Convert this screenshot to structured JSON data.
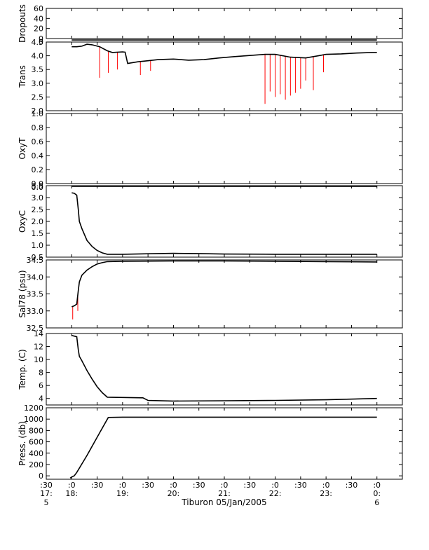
{
  "chart_data": {
    "type": "line",
    "xlabel": "Tiburon 05/Jan/2005",
    "x_ticks": [
      {
        "l1": ":30",
        "l2": "17:",
        "l3": "5"
      },
      {
        "l1": ":0",
        "l2": "18:",
        "l3": ""
      },
      {
        "l1": ":30",
        "l2": "",
        "l3": ""
      },
      {
        "l1": ":0",
        "l2": "19:",
        "l3": ""
      },
      {
        "l1": ":30",
        "l2": "",
        "l3": ""
      },
      {
        "l1": ":0",
        "l2": "20:",
        "l3": ""
      },
      {
        "l1": ":30",
        "l2": "",
        "l3": ""
      },
      {
        "l1": ":0",
        "l2": "21:",
        "l3": ""
      },
      {
        "l1": ":30",
        "l2": "",
        "l3": ""
      },
      {
        "l1": ":0",
        "l2": "22:",
        "l3": ""
      },
      {
        "l1": ":30",
        "l2": "",
        "l3": ""
      },
      {
        "l1": ":0",
        "l2": "23:",
        "l3": ""
      },
      {
        "l1": ":30",
        "l2": "",
        "l3": ""
      },
      {
        "l1": ":0",
        "l2": "0:",
        "l3": "6"
      }
    ],
    "xlim_hours": [
      17.5,
      24.5
    ],
    "colors": {
      "data": "#000000",
      "raw": "#ff0000",
      "axis": "#000000"
    },
    "panels": [
      {
        "ylabel": "Dropouts",
        "ylim": [
          0,
          60
        ],
        "ticks": [
          "0",
          "20",
          "40",
          "60"
        ],
        "tick_values": [
          0,
          20,
          40,
          60
        ],
        "extra_ticks": [
          {
            "label": "0",
            "value": -6
          }
        ],
        "series": [
          {
            "x": [
              18.0,
              24.0
            ],
            "y": [
              -3,
              -3
            ]
          }
        ]
      },
      {
        "ylabel": "Trans",
        "ylim": [
          2.0,
          4.5
        ],
        "ticks": [
          "2.0",
          "2.5",
          "3.0",
          "3.5",
          "4.0",
          "4.5"
        ],
        "tick_values": [
          2.0,
          2.5,
          3.0,
          3.5,
          4.0,
          4.5
        ],
        "series": [
          {
            "x": [
              18.0,
              18.1,
              18.2,
              18.3,
              18.4,
              18.55,
              18.7,
              18.8,
              19.0,
              19.05,
              19.1,
              19.3,
              19.5,
              19.7,
              20.0,
              20.3,
              20.6,
              20.9,
              21.2,
              21.5,
              21.8,
              22.0,
              22.3,
              22.6,
              22.85,
              23.0,
              23.3,
              23.6,
              23.9,
              24.0
            ],
            "y": [
              4.33,
              4.33,
              4.35,
              4.42,
              4.4,
              4.33,
              4.18,
              4.12,
              4.14,
              4.13,
              3.72,
              3.78,
              3.82,
              3.86,
              3.88,
              3.84,
              3.86,
              3.92,
              3.97,
              4.01,
              4.05,
              4.05,
              3.95,
              3.92,
              4.0,
              4.05,
              4.07,
              4.1,
              4.12,
              4.12
            ]
          }
        ],
        "raw_dips": [
          {
            "x": 18.55,
            "y": 3.2
          },
          {
            "x": 18.72,
            "y": 3.38
          },
          {
            "x": 18.9,
            "y": 3.5
          },
          {
            "x": 19.35,
            "y": 3.3
          },
          {
            "x": 19.55,
            "y": 3.45
          },
          {
            "x": 21.8,
            "y": 2.25
          },
          {
            "x": 21.9,
            "y": 2.7
          },
          {
            "x": 22.0,
            "y": 2.5
          },
          {
            "x": 22.1,
            "y": 2.6
          },
          {
            "x": 22.2,
            "y": 2.4
          },
          {
            "x": 22.3,
            "y": 2.55
          },
          {
            "x": 22.4,
            "y": 2.65
          },
          {
            "x": 22.5,
            "y": 2.8
          },
          {
            "x": 22.6,
            "y": 3.1
          },
          {
            "x": 22.75,
            "y": 2.75
          },
          {
            "x": 22.95,
            "y": 3.4
          }
        ]
      },
      {
        "ylabel": "OxyT",
        "ylim": [
          0.0,
          1.0
        ],
        "ticks": [
          "0.0",
          "0.2",
          "0.4",
          "0.6",
          "0.8",
          "1.0"
        ],
        "tick_values": [
          0.0,
          0.2,
          0.4,
          0.6,
          0.8,
          1.0
        ],
        "extra_ticks": [
          {
            "label": "0.0",
            "value": -0.05
          }
        ],
        "series": [
          {
            "x": [
              18.0,
              24.0
            ],
            "y": [
              -0.04,
              -0.04
            ]
          }
        ]
      },
      {
        "ylabel": "OxyC",
        "ylim": [
          0.5,
          3.5
        ],
        "ticks": [
          "0.5",
          "1.0",
          "1.5",
          "2.0",
          "2.5",
          "3.0",
          "3.5"
        ],
        "tick_values": [
          0.5,
          1.0,
          1.5,
          2.0,
          2.5,
          3.0,
          3.5
        ],
        "series": [
          {
            "x": [
              18.0,
              18.05,
              18.1,
              18.13,
              18.15,
              18.2,
              18.3,
              18.4,
              18.5,
              18.6,
              18.7,
              19.0,
              19.5,
              20.0,
              20.5,
              21.0,
              22.0,
              23.0,
              24.0
            ],
            "y": [
              3.2,
              3.18,
              3.1,
              2.5,
              2.0,
              1.7,
              1.2,
              0.95,
              0.78,
              0.68,
              0.62,
              0.62,
              0.64,
              0.66,
              0.65,
              0.63,
              0.62,
              0.62,
              0.62
            ]
          }
        ]
      },
      {
        "ylabel": "Sal78 (psu)",
        "ylim": [
          32.5,
          34.5
        ],
        "ticks": [
          "32.5",
          "33.0",
          "33.5",
          "34.0",
          "34.5"
        ],
        "tick_values": [
          32.5,
          33.0,
          33.5,
          34.0,
          34.5
        ],
        "series": [
          {
            "x": [
              18.0,
              18.05,
              18.1,
              18.13,
              18.15,
              18.2,
              18.3,
              18.4,
              18.5,
              18.6,
              18.7,
              19.0,
              20.0,
              21.0,
              22.0,
              23.0,
              24.0
            ],
            "y": [
              33.12,
              33.15,
              33.2,
              33.6,
              33.85,
              34.05,
              34.2,
              34.3,
              34.38,
              34.42,
              34.45,
              34.46,
              34.47,
              34.47,
              34.46,
              34.45,
              34.44
            ]
          }
        ],
        "raw_dips": [
          {
            "x": 18.02,
            "y": 32.75
          },
          {
            "x": 18.12,
            "y": 33.0
          }
        ]
      },
      {
        "ylabel": "Temp. (C)",
        "ylim": [
          3,
          14
        ],
        "ticks": [
          "4",
          "6",
          "8",
          "10",
          "12",
          "14"
        ],
        "tick_values": [
          4,
          6,
          8,
          10,
          12,
          14
        ],
        "series": [
          {
            "x": [
              18.0,
              18.05,
              18.1,
              18.13,
              18.15,
              18.2,
              18.3,
              18.4,
              18.5,
              18.6,
              18.7,
              19.0,
              19.4,
              19.5,
              20.0,
              21.0,
              22.0,
              23.0,
              24.0
            ],
            "y": [
              13.7,
              13.6,
              13.5,
              11.5,
              10.5,
              9.8,
              8.3,
              7.0,
              5.8,
              4.9,
              4.2,
              4.15,
              4.1,
              3.7,
              3.6,
              3.65,
              3.7,
              3.8,
              4.0
            ]
          }
        ]
      },
      {
        "ylabel": "Press. (db)",
        "ylim": [
          -60,
          1200
        ],
        "ticks": [
          "0",
          "200",
          "400",
          "600",
          "800",
          "1000",
          "1200"
        ],
        "tick_values": [
          0,
          200,
          400,
          600,
          800,
          1000,
          1200
        ],
        "series": [
          {
            "x": [
              17.97,
              18.0,
              18.05,
              18.1,
              18.3,
              18.55,
              18.72,
              19.0,
              20.0,
              21.0,
              22.0,
              23.0,
              24.0
            ],
            "y": [
              -40,
              -20,
              0,
              60,
              360,
              760,
              1030,
              1035,
              1035,
              1035,
              1035,
              1035,
              1035
            ]
          }
        ]
      }
    ]
  }
}
